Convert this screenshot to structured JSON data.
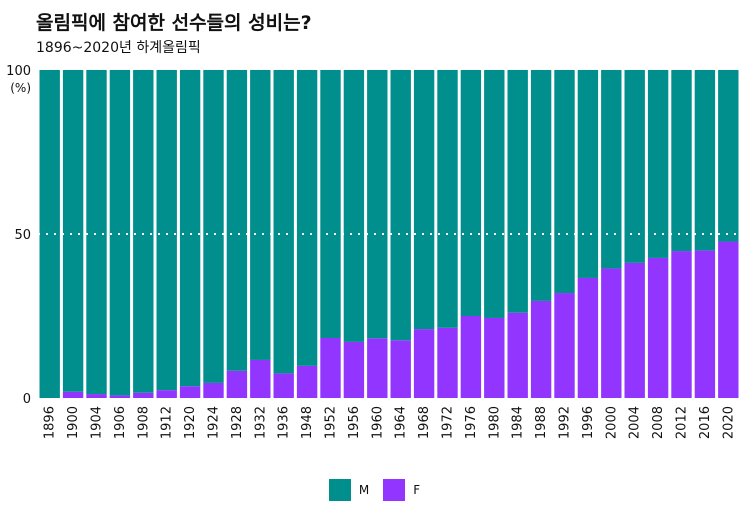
{
  "title": "올림픽에 참여한 선수들의 성비는?",
  "subtitle": "1896~2020년 하계올림픽",
  "colors": {
    "M": "#008f8c",
    "F": "#9236ff"
  },
  "chart_data": {
    "type": "bar",
    "stacked": true,
    "ylabel": "(%)",
    "ylim": [
      0,
      100
    ],
    "yticks": [
      0,
      50,
      100
    ],
    "reference_line": 50,
    "legend_position": "bottom",
    "categories": [
      "1896",
      "1900",
      "1904",
      "1906",
      "1908",
      "1912",
      "1920",
      "1924",
      "1928",
      "1932",
      "1936",
      "1948",
      "1952",
      "1956",
      "1960",
      "1964",
      "1968",
      "1972",
      "1976",
      "1980",
      "1984",
      "1988",
      "1992",
      "1996",
      "2000",
      "2004",
      "2008",
      "2012",
      "2016",
      "2020"
    ],
    "series": [
      {
        "name": "M",
        "values": [
          100,
          98.1,
          98.8,
          99.2,
          98.4,
          97.6,
          96.4,
          95.4,
          91.7,
          88.4,
          92.5,
          90.2,
          81.7,
          82.9,
          81.8,
          82.4,
          79.0,
          78.6,
          75.0,
          75.6,
          74.0,
          70.4,
          68.0,
          63.4,
          60.5,
          58.8,
          57.3,
          55.2,
          55.0,
          52.3
        ]
      },
      {
        "name": "F",
        "values": [
          0,
          1.9,
          1.2,
          0.8,
          1.6,
          2.4,
          3.6,
          4.6,
          8.3,
          11.6,
          7.5,
          9.8,
          18.3,
          17.1,
          18.2,
          17.6,
          21.0,
          21.4,
          25.0,
          24.4,
          26.0,
          29.6,
          32.0,
          36.6,
          39.5,
          41.2,
          42.7,
          44.8,
          45.0,
          47.7
        ]
      }
    ]
  }
}
